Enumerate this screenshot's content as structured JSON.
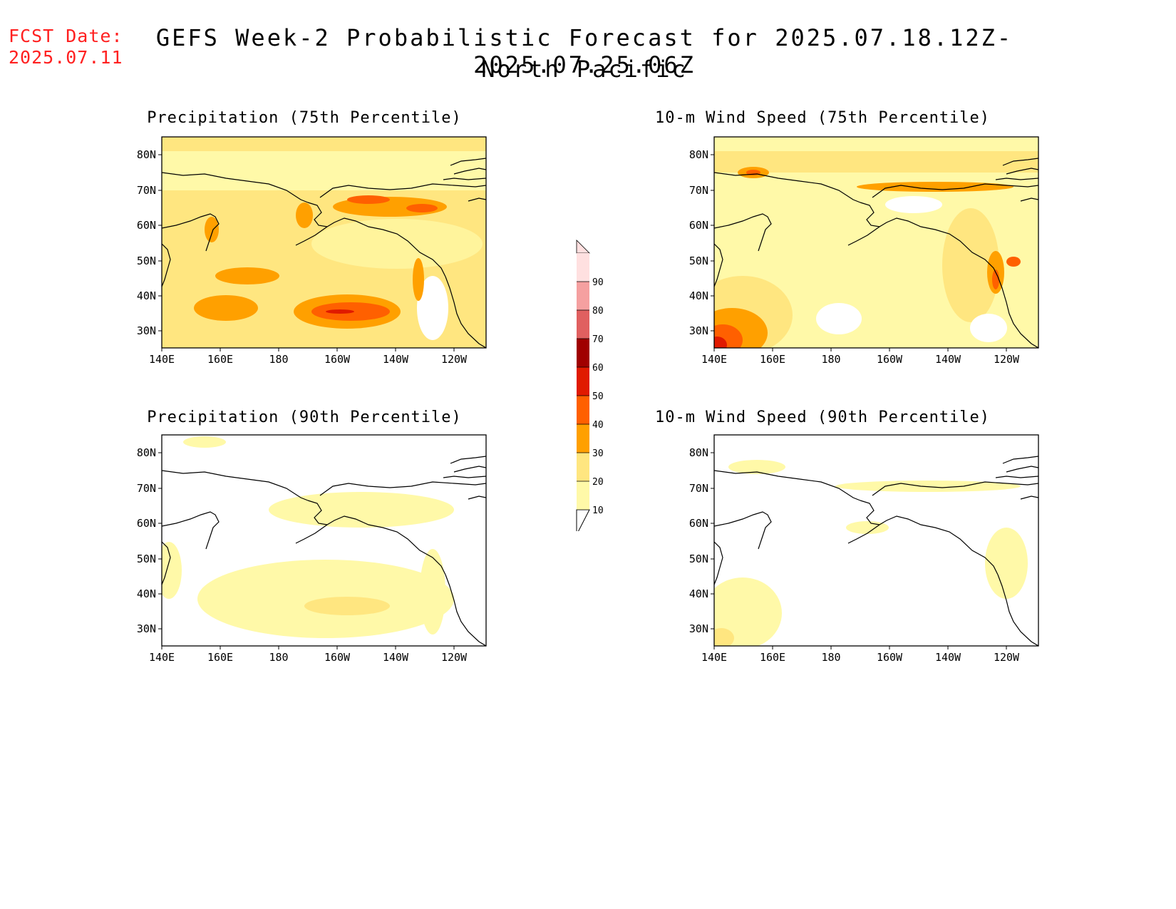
{
  "header": {
    "fcst_date_label": "FCST Date:",
    "fcst_date_value": "2025.07.11",
    "title": "GEFS Week-2 Probabilistic Forecast for 2025.07.18.12Z-2025.07.25.06Z",
    "subtitle": "North Pacific"
  },
  "panels": [
    {
      "id": "precip75",
      "title": "Precipitation (75th Percentile)",
      "intensity": "high",
      "variable": "precipitation"
    },
    {
      "id": "wind75",
      "title": "10-m Wind Speed (75th Percentile)",
      "intensity": "high",
      "variable": "wind"
    },
    {
      "id": "precip90",
      "title": "Precipitation (90th Percentile)",
      "intensity": "low",
      "variable": "precipitation"
    },
    {
      "id": "wind90",
      "title": "10-m Wind Speed (90th Percentile)",
      "intensity": "low",
      "variable": "wind"
    }
  ],
  "axes": {
    "lon_ticks": [
      "140E",
      "160E",
      "180",
      "160W",
      "140W",
      "120W"
    ],
    "lat_ticks": [
      "80N",
      "70N",
      "60N",
      "50N",
      "40N",
      "30N"
    ]
  },
  "colorbar": {
    "levels": [
      "10",
      "20",
      "30",
      "40",
      "50",
      "60",
      "70",
      "80",
      "90"
    ],
    "colors": [
      "#fff9a8",
      "#ffe680",
      "#ffa000",
      "#ff6000",
      "#e01a00",
      "#a00000",
      "#e06060",
      "#f5a0a0",
      "#ffe0e0"
    ]
  }
}
